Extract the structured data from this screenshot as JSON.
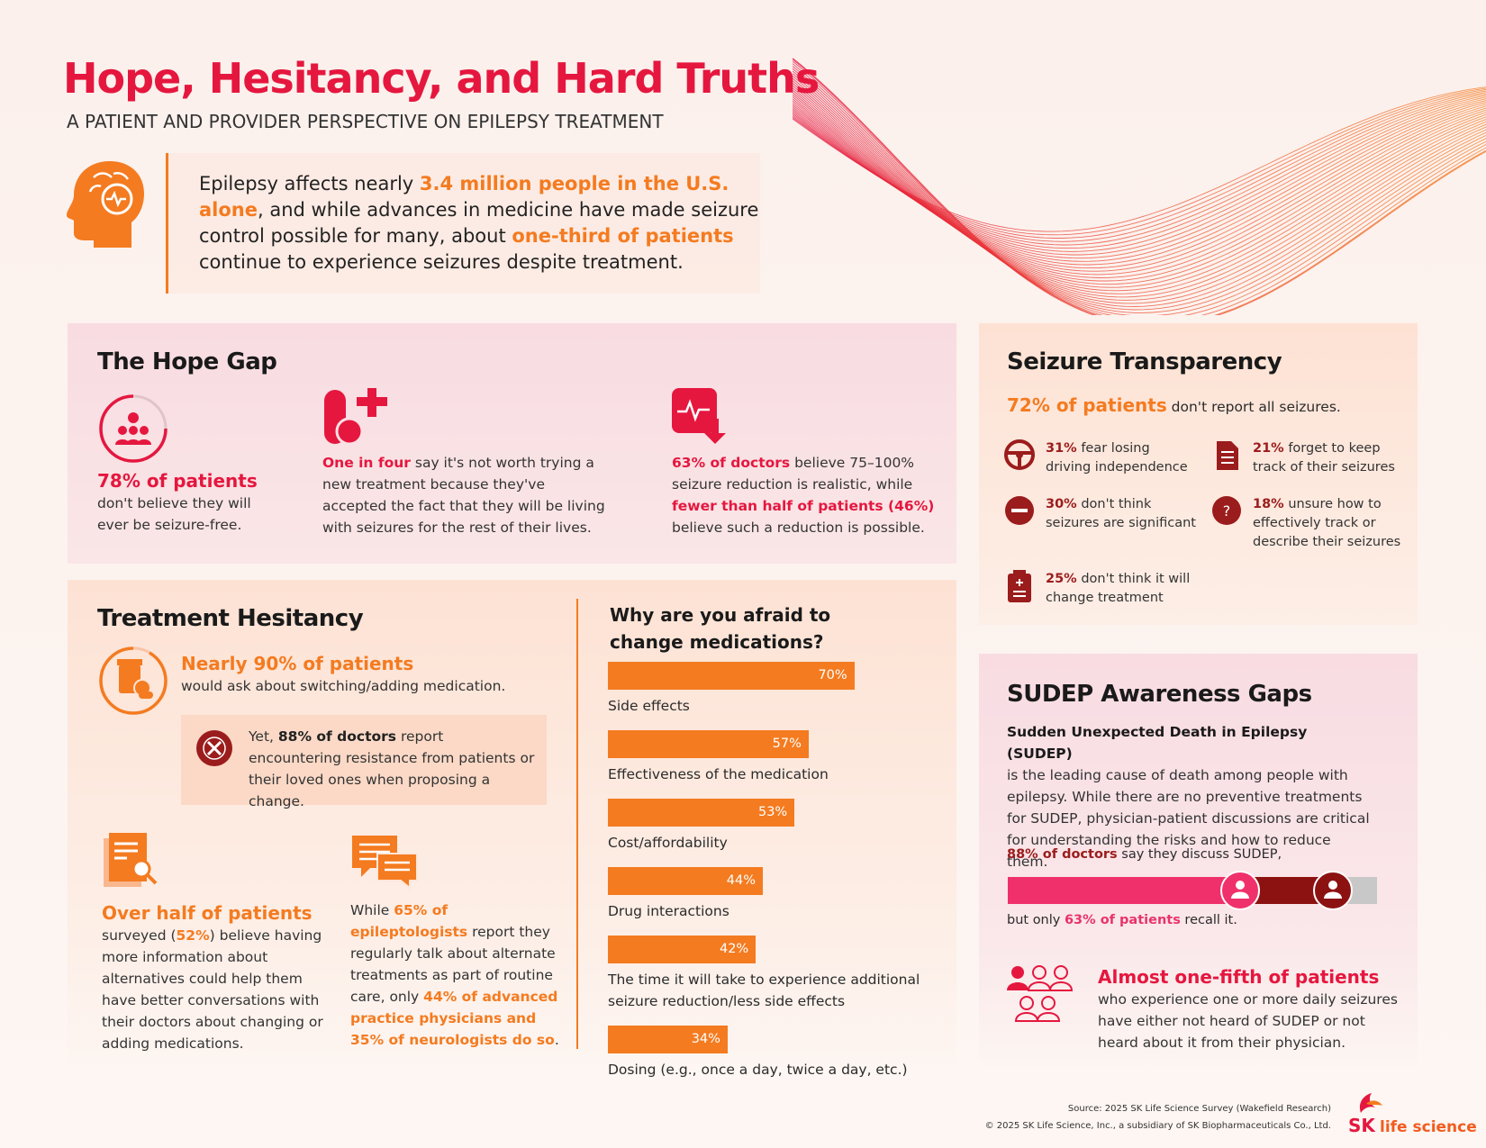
{
  "header": {
    "title": "Hope, Hesitancy, and Hard Truths",
    "subtitle": "A PATIENT AND PROVIDER PERSPECTIVE ON EPILEPSY TREATMENT"
  },
  "intro": [
    "Epilepsy affects nearly ",
    "3.4 million people in the U.S. alone",
    ", and while advances in medicine have made seizure control possible for many, about ",
    "one-third of patients",
    " continue to experience seizures despite treatment."
  ],
  "hope_gap": {
    "title": "The Hope Gap",
    "items": [
      {
        "highlight": "78% of patients",
        "text": "don't believe they will ever be seizure-free."
      },
      {
        "parts": [
          "One in four",
          " say it's not worth trying a new treatment because they've accepted the fact that they will be living with seizures for the rest of their lives."
        ]
      },
      {
        "parts": [
          "63% of doctors",
          " believe 75–100% seizure reduction is realistic, while ",
          "fewer than half of patients (46%)",
          " believe such a reduction is possible."
        ]
      }
    ]
  },
  "treatment_hesitancy": {
    "title": "Treatment Hesitancy",
    "stat": {
      "highlight": "Nearly 90% of patients",
      "text": "would ask about switching/adding medication."
    },
    "callout": [
      "Yet, ",
      "88% of doctors",
      " report encountering resistance from patients or their loved ones when proposing a change."
    ],
    "info": {
      "highlight": "Over half of patients",
      "parts": [
        "surveyed (",
        "52%",
        ") believe having more information about alternatives could help them have better conversations with their doctors about changing or adding medications."
      ]
    },
    "talk": [
      "While ",
      "65% of epileptologists",
      " report they regularly talk about alternate treatments as part of routine care, only ",
      "44% of advanced practice physicians and 35% of neurologists do so",
      "."
    ]
  },
  "medication_fears": {
    "type": "bar",
    "title": "Why are you afraid to change medications?",
    "categories": [
      "Side effects",
      "Effectiveness of the medication",
      "Cost/affordability",
      "Drug interactions",
      "The time it will take to experience additional seizure reduction/less side effects",
      "Dosing (e.g., once a day, twice a day, etc.)"
    ],
    "values": [
      70,
      57,
      53,
      44,
      42,
      34
    ],
    "value_labels": [
      "70%",
      "57%",
      "53%",
      "44%",
      "42%",
      "34%"
    ],
    "color": "#f47b20"
  },
  "seizure_transparency": {
    "title": "Seizure Transparency",
    "lead": [
      "72% of patients",
      " don't report all seizures."
    ],
    "items": [
      [
        "31%",
        " fear losing driving independence"
      ],
      [
        "21%",
        " forget to keep track of their seizures"
      ],
      [
        "30%",
        " don't think seizures are significant"
      ],
      [
        "18%",
        " unsure how to effectively track or describe their seizures"
      ],
      [
        "25%",
        " don't think it will change treatment"
      ]
    ]
  },
  "sudep": {
    "title": "SUDEP Awareness Gaps",
    "definition_title": "Sudden Unexpected Death in Epilepsy (SUDEP)",
    "definition": "is the leading cause of death among people with epilepsy. While there are no preventive treatments for SUDEP, physician-patient discussions are critical for understanding the risks and how to reduce them.",
    "doctors": [
      "88% of doctors",
      " say they discuss SUDEP,"
    ],
    "patients": [
      "but only ",
      "63% of patients",
      " recall it."
    ],
    "bar": {
      "values": [
        88,
        63
      ],
      "colors": [
        "#8c1212",
        "#f0306a"
      ],
      "xlim": [
        0,
        100
      ]
    },
    "stat": {
      "highlight": "Almost one-fifth of patients",
      "text": "who experience one or more daily seizures have either not heard of SUDEP or not heard about it from their physician."
    }
  },
  "footer": {
    "source": "Source: 2025 SK Life Science Survey (Wakefield Research)",
    "copyright": "© 2025 SK Life Science, Inc., a subsidiary of SK Biopharmaceuticals Co., Ltd.",
    "logo": [
      "SK",
      "life science"
    ]
  }
}
